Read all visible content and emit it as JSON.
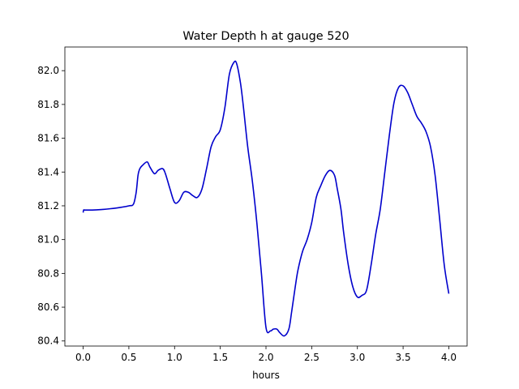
{
  "chart_data": {
    "type": "line",
    "title": "Water Depth h at gauge 520",
    "xlabel": "hours",
    "ylabel": "",
    "xlim": [
      -0.2,
      4.2
    ],
    "ylim": [
      80.37,
      82.14
    ],
    "xticks": [
      0.0,
      0.5,
      1.0,
      1.5,
      2.0,
      2.5,
      3.0,
      3.5,
      4.0
    ],
    "xtick_labels": [
      "0.0",
      "0.5",
      "1.0",
      "1.5",
      "2.0",
      "2.5",
      "3.0",
      "3.5",
      "4.0"
    ],
    "yticks": [
      80.4,
      80.6,
      80.8,
      81.0,
      81.2,
      81.4,
      81.6,
      81.8,
      82.0
    ],
    "ytick_labels": [
      "80.4",
      "80.6",
      "80.8",
      "81.0",
      "81.2",
      "81.4",
      "81.6",
      "81.8",
      "82.0"
    ],
    "grid": false,
    "series": [
      {
        "color": "#0000cc",
        "x": [
          0.0,
          0.005,
          0.02,
          0.1,
          0.2,
          0.3,
          0.4,
          0.5,
          0.55,
          0.58,
          0.6,
          0.62,
          0.65,
          0.7,
          0.73,
          0.78,
          0.82,
          0.87,
          0.9,
          0.95,
          1.0,
          1.05,
          1.1,
          1.15,
          1.2,
          1.25,
          1.3,
          1.35,
          1.4,
          1.45,
          1.5,
          1.55,
          1.6,
          1.65,
          1.68,
          1.72,
          1.75,
          1.8,
          1.85,
          1.9,
          1.95,
          2.0,
          2.05,
          2.08,
          2.12,
          2.15,
          2.2,
          2.25,
          2.28,
          2.32,
          2.35,
          2.4,
          2.45,
          2.5,
          2.55,
          2.6,
          2.65,
          2.7,
          2.75,
          2.78,
          2.82,
          2.85,
          2.9,
          2.95,
          3.0,
          3.05,
          3.1,
          3.15,
          3.2,
          3.25,
          3.3,
          3.35,
          3.4,
          3.45,
          3.5,
          3.55,
          3.6,
          3.65,
          3.7,
          3.75,
          3.8,
          3.85,
          3.9,
          3.95,
          4.0
        ],
        "y": [
          81.16,
          81.175,
          81.175,
          81.175,
          81.178,
          81.183,
          81.19,
          81.2,
          81.21,
          81.28,
          81.38,
          81.42,
          81.44,
          81.46,
          81.43,
          81.39,
          81.41,
          81.42,
          81.39,
          81.3,
          81.22,
          81.23,
          81.28,
          81.28,
          81.26,
          81.25,
          81.3,
          81.42,
          81.55,
          81.61,
          81.65,
          81.78,
          81.98,
          82.05,
          82.04,
          81.93,
          81.8,
          81.55,
          81.35,
          81.1,
          80.8,
          80.48,
          80.46,
          80.47,
          80.47,
          80.45,
          80.43,
          80.47,
          80.57,
          80.72,
          80.82,
          80.93,
          81.0,
          81.1,
          81.25,
          81.32,
          81.38,
          81.41,
          81.38,
          81.3,
          81.18,
          81.04,
          80.85,
          80.72,
          80.66,
          80.67,
          80.7,
          80.85,
          81.03,
          81.18,
          81.4,
          81.62,
          81.81,
          81.9,
          81.91,
          81.87,
          81.8,
          81.73,
          81.69,
          81.64,
          81.55,
          81.38,
          81.12,
          80.85,
          80.68
        ]
      }
    ]
  }
}
